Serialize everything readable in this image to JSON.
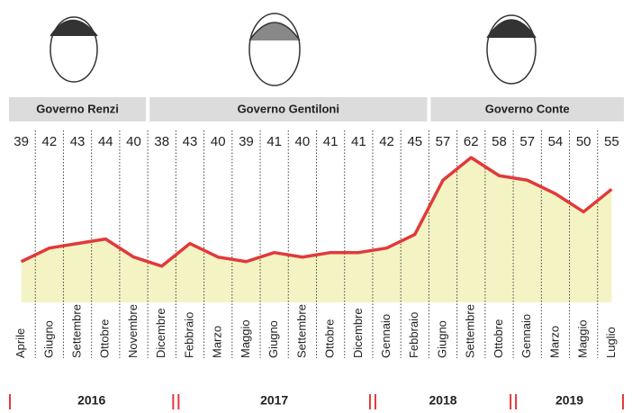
{
  "chart_data": {
    "type": "line",
    "area": true,
    "categories": [
      "Aprile",
      "Giugno",
      "Settembre",
      "Ottobre",
      "Novembre",
      "Dicembre",
      "Febbraio",
      "Marzo",
      "Maggio",
      "Giugno",
      "Settembre",
      "Ottobre",
      "Dicembre",
      "Gennaio",
      "Febbraio",
      "Giugno",
      "Settembre",
      "Ottobre",
      "Gennaio",
      "Marzo",
      "Maggio",
      "Luglio"
    ],
    "values": [
      39,
      42,
      43,
      44,
      40,
      38,
      43,
      40,
      39,
      41,
      40,
      41,
      41,
      42,
      45,
      57,
      62,
      58,
      57,
      54,
      50,
      55
    ],
    "color": "#e2393a",
    "area_color": "#f4f3c4",
    "ylim": [
      30,
      66
    ],
    "governments": [
      "Governo Renzi",
      "Governo Gentiloni",
      "Governo Conte"
    ],
    "years": [
      "2016",
      "2017",
      "2018",
      "2019"
    ]
  }
}
